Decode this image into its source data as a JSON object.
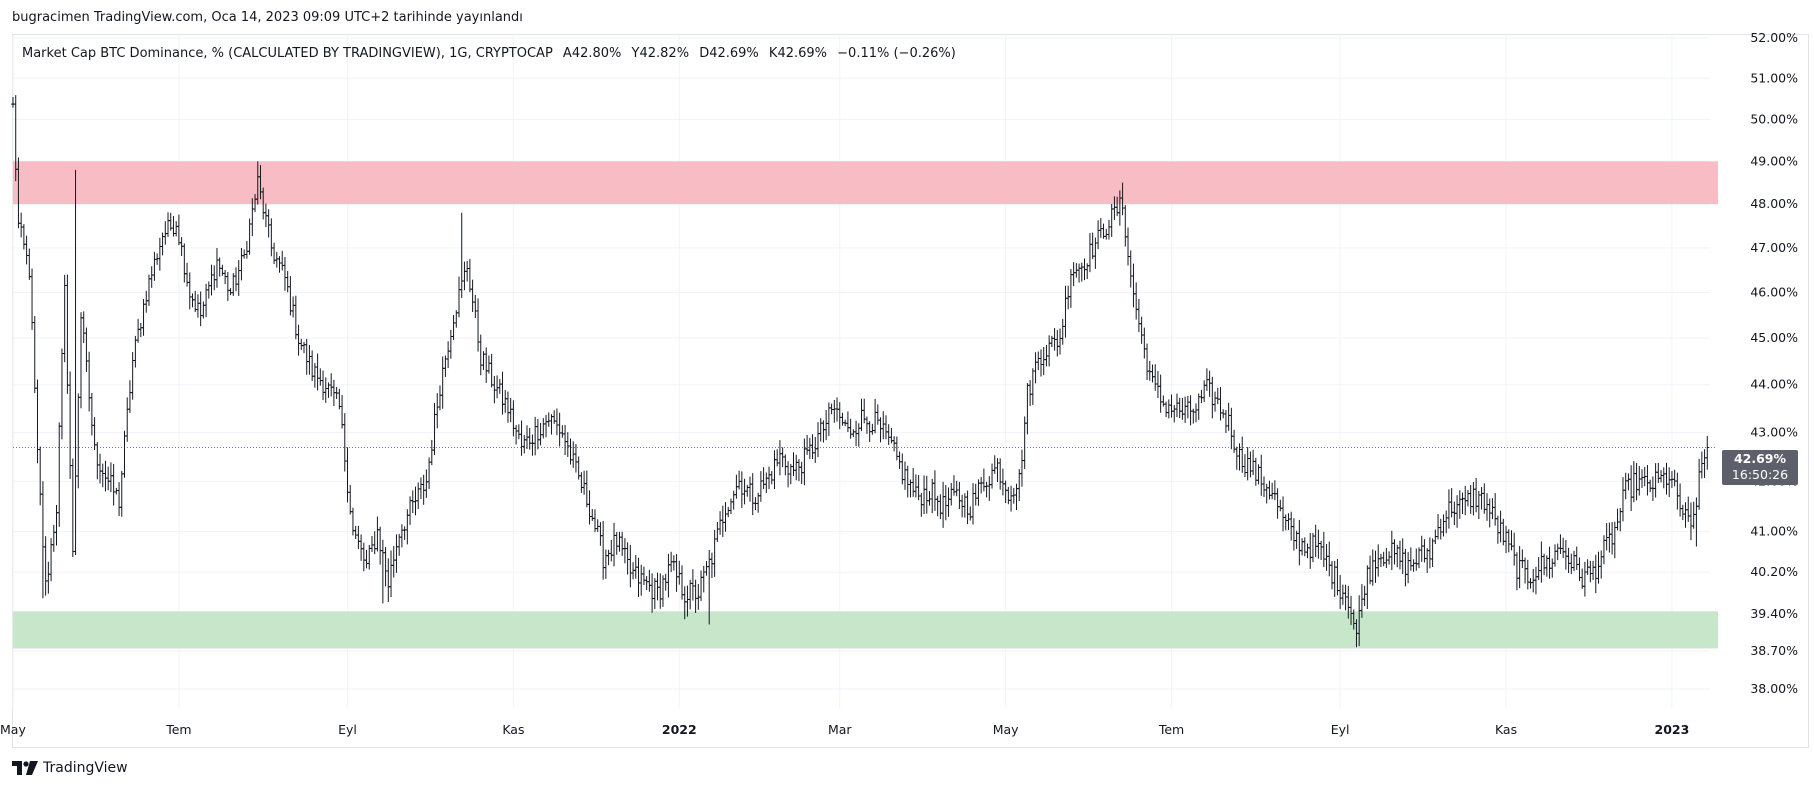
{
  "publisher_line": "bugracimen TradingView.com, Oca 14, 2023 09:09 UTC+2 tarihinde yayınlandı",
  "legend": {
    "title": "Market Cap BTC Dominance, % (CALCULATED BY TRADINGVIEW), 1G, CRYPTOCAP",
    "open": "A42.80%",
    "high": "Y42.82%",
    "low": "D42.69%",
    "close": "K42.69%",
    "change": "−0.11% (−0.26%)"
  },
  "price_badge": {
    "value": "42.69%",
    "countdown": "16:50:26"
  },
  "footer": {
    "brand": "TradingView"
  },
  "colors": {
    "bars": "#131722",
    "resistance_zone": "#f8bcc4",
    "support_zone": "#c8e6c9",
    "grid": "#f0f3fa",
    "price_line": "#787b86",
    "badge": "#5d606b"
  },
  "chart_data": {
    "type": "ohlc",
    "title": "Market Cap BTC Dominance, % (CALCULATED BY TRADINGVIEW), 1G, CRYPTOCAP",
    "y_axis": {
      "scale": "log",
      "range": [
        37.8,
        52.1
      ],
      "ticks": [
        "52.00%",
        "51.00%",
        "50.00%",
        "49.00%",
        "48.00%",
        "47.00%",
        "46.00%",
        "45.00%",
        "44.00%",
        "43.00%",
        "42.00%",
        "41.00%",
        "40.20%",
        "39.40%",
        "38.70%",
        "38.00%"
      ]
    },
    "x_axis": {
      "range": [
        "2021-05-01",
        "2023-01-15"
      ],
      "ticks": [
        {
          "date": "2021-05-01",
          "label": "May",
          "bold": false
        },
        {
          "date": "2021-07-01",
          "label": "Tem",
          "bold": false
        },
        {
          "date": "2021-09-01",
          "label": "Eyl",
          "bold": false
        },
        {
          "date": "2021-11-01",
          "label": "Kas",
          "bold": false
        },
        {
          "date": "2022-01-01",
          "label": "2022",
          "bold": true
        },
        {
          "date": "2022-03-01",
          "label": "Mar",
          "bold": false
        },
        {
          "date": "2022-05-01",
          "label": "May",
          "bold": false
        },
        {
          "date": "2022-07-01",
          "label": "Tem",
          "bold": false
        },
        {
          "date": "2022-09-01",
          "label": "Eyl",
          "bold": false
        },
        {
          "date": "2022-11-01",
          "label": "Kas",
          "bold": false
        },
        {
          "date": "2023-01-01",
          "label": "2023",
          "bold": true
        }
      ]
    },
    "zones": [
      {
        "role": "resistance",
        "low": 48.0,
        "high": 49.0
      },
      {
        "role": "support",
        "low": 38.75,
        "high": 39.45
      }
    ],
    "last_price": 42.69,
    "series_path": [
      [
        "2021-05-01",
        50.3
      ],
      [
        "2021-05-03",
        47.5
      ],
      [
        "2021-05-07",
        46.5
      ],
      [
        "2021-05-10",
        42.5
      ],
      [
        "2021-05-13",
        39.9
      ],
      [
        "2021-05-17",
        41.5
      ],
      [
        "2021-05-20",
        46.0
      ],
      [
        "2021-05-23",
        40.5
      ],
      [
        "2021-05-26",
        45.5
      ],
      [
        "2021-05-31",
        42.6
      ],
      [
        "2021-06-05",
        42.0
      ],
      [
        "2021-06-09",
        41.6
      ],
      [
        "2021-06-14",
        44.5
      ],
      [
        "2021-06-19",
        46.0
      ],
      [
        "2021-06-25",
        47.3
      ],
      [
        "2021-06-30",
        47.6
      ],
      [
        "2021-07-05",
        46.0
      ],
      [
        "2021-07-09",
        45.5
      ],
      [
        "2021-07-15",
        46.7
      ],
      [
        "2021-07-20",
        46.0
      ],
      [
        "2021-07-25",
        46.8
      ],
      [
        "2021-07-30",
        48.5
      ],
      [
        "2021-08-04",
        47.0
      ],
      [
        "2021-08-09",
        46.3
      ],
      [
        "2021-08-14",
        45.0
      ],
      [
        "2021-08-19",
        44.3
      ],
      [
        "2021-08-24",
        44.0
      ],
      [
        "2021-08-29",
        43.5
      ],
      [
        "2021-09-03",
        41.0
      ],
      [
        "2021-09-08",
        40.3
      ],
      [
        "2021-09-12",
        41.0
      ],
      [
        "2021-09-16",
        40.0
      ],
      [
        "2021-09-20",
        41.0
      ],
      [
        "2021-09-25",
        41.5
      ],
      [
        "2021-09-30",
        42.0
      ],
      [
        "2021-10-05",
        44.0
      ],
      [
        "2021-10-10",
        45.5
      ],
      [
        "2021-10-15",
        46.6
      ],
      [
        "2021-10-20",
        44.6
      ],
      [
        "2021-10-25",
        44.0
      ],
      [
        "2021-10-30",
        43.5
      ],
      [
        "2021-11-04",
        42.7
      ],
      [
        "2021-11-09",
        43.0
      ],
      [
        "2021-11-14",
        43.3
      ],
      [
        "2021-11-19",
        43.0
      ],
      [
        "2021-11-24",
        42.2
      ],
      [
        "2021-11-29",
        41.5
      ],
      [
        "2021-12-04",
        40.5
      ],
      [
        "2021-12-09",
        40.8
      ],
      [
        "2021-12-14",
        40.2
      ],
      [
        "2021-12-19",
        40.0
      ],
      [
        "2021-12-24",
        39.8
      ],
      [
        "2021-12-29",
        40.3
      ],
      [
        "2022-01-03",
        39.8
      ],
      [
        "2022-01-08",
        39.8
      ],
      [
        "2022-01-13",
        40.5
      ],
      [
        "2022-01-18",
        41.5
      ],
      [
        "2022-01-23",
        42.0
      ],
      [
        "2022-01-28",
        41.7
      ],
      [
        "2022-02-02",
        42.0
      ],
      [
        "2022-02-07",
        42.5
      ],
      [
        "2022-02-12",
        42.2
      ],
      [
        "2022-02-17",
        42.5
      ],
      [
        "2022-02-22",
        43.0
      ],
      [
        "2022-02-27",
        43.5
      ],
      [
        "2022-03-04",
        43.0
      ],
      [
        "2022-03-09",
        43.3
      ],
      [
        "2022-03-14",
        43.2
      ],
      [
        "2022-03-19",
        42.8
      ],
      [
        "2022-03-24",
        42.2
      ],
      [
        "2022-03-29",
        41.7
      ],
      [
        "2022-04-03",
        41.8
      ],
      [
        "2022-04-08",
        41.5
      ],
      [
        "2022-04-13",
        41.7
      ],
      [
        "2022-04-18",
        41.5
      ],
      [
        "2022-04-23",
        42.0
      ],
      [
        "2022-04-28",
        42.3
      ],
      [
        "2022-05-02",
        41.8
      ],
      [
        "2022-05-06",
        42.0
      ],
      [
        "2022-05-09",
        43.8
      ],
      [
        "2022-05-13",
        44.6
      ],
      [
        "2022-05-17",
        44.8
      ],
      [
        "2022-05-21",
        45.0
      ],
      [
        "2022-05-25",
        46.5
      ],
      [
        "2022-05-29",
        46.6
      ],
      [
        "2022-06-02",
        47.0
      ],
      [
        "2022-06-06",
        47.4
      ],
      [
        "2022-06-10",
        47.8
      ],
      [
        "2022-06-13",
        48.0
      ],
      [
        "2022-06-16",
        46.3
      ],
      [
        "2022-06-20",
        45.0
      ],
      [
        "2022-06-24",
        44.0
      ],
      [
        "2022-06-28",
        43.6
      ],
      [
        "2022-07-02",
        43.5
      ],
      [
        "2022-07-06",
        43.4
      ],
      [
        "2022-07-10",
        43.5
      ],
      [
        "2022-07-14",
        43.9
      ],
      [
        "2022-07-18",
        43.6
      ],
      [
        "2022-07-22",
        43.2
      ],
      [
        "2022-07-26",
        42.5
      ],
      [
        "2022-07-30",
        42.3
      ],
      [
        "2022-08-03",
        42.0
      ],
      [
        "2022-08-07",
        41.8
      ],
      [
        "2022-08-11",
        41.2
      ],
      [
        "2022-08-15",
        40.9
      ],
      [
        "2022-08-19",
        40.7
      ],
      [
        "2022-08-23",
        40.7
      ],
      [
        "2022-08-27",
        40.4
      ],
      [
        "2022-08-31",
        40.0
      ],
      [
        "2022-09-04",
        39.7
      ],
      [
        "2022-09-07",
        39.0
      ],
      [
        "2022-09-10",
        40.0
      ],
      [
        "2022-09-14",
        40.5
      ],
      [
        "2022-09-18",
        40.6
      ],
      [
        "2022-09-22",
        40.5
      ],
      [
        "2022-09-26",
        40.3
      ],
      [
        "2022-09-30",
        40.5
      ],
      [
        "2022-10-04",
        40.6
      ],
      [
        "2022-10-08",
        41.2
      ],
      [
        "2022-10-12",
        41.5
      ],
      [
        "2022-10-16",
        41.5
      ],
      [
        "2022-10-20",
        41.7
      ],
      [
        "2022-10-24",
        41.6
      ],
      [
        "2022-10-28",
        41.2
      ],
      [
        "2022-11-01",
        40.8
      ],
      [
        "2022-11-05",
        40.3
      ],
      [
        "2022-11-09",
        40.1
      ],
      [
        "2022-11-13",
        40.3
      ],
      [
        "2022-11-17",
        40.4
      ],
      [
        "2022-11-21",
        40.7
      ],
      [
        "2022-11-25",
        40.4
      ],
      [
        "2022-11-29",
        40.1
      ],
      [
        "2022-12-03",
        40.2
      ],
      [
        "2022-12-07",
        40.6
      ],
      [
        "2022-12-11",
        41.0
      ],
      [
        "2022-12-15",
        41.8
      ],
      [
        "2022-12-19",
        42.0
      ],
      [
        "2022-12-23",
        41.9
      ],
      [
        "2022-12-27",
        42.0
      ],
      [
        "2022-12-31",
        42.1
      ],
      [
        "2023-01-04",
        41.5
      ],
      [
        "2023-01-08",
        41.0
      ],
      [
        "2023-01-12",
        42.3
      ],
      [
        "2023-01-14",
        42.69
      ]
    ],
    "spikes": [
      {
        "date": "2021-05-12",
        "low": 39.7
      },
      {
        "date": "2021-05-24",
        "high": 48.8
      },
      {
        "date": "2021-07-30",
        "high": 49.0
      },
      {
        "date": "2021-09-14",
        "low": 39.6
      },
      {
        "date": "2021-10-13",
        "high": 47.8
      },
      {
        "date": "2022-01-03",
        "low": 39.3
      },
      {
        "date": "2022-01-12",
        "low": 39.2
      },
      {
        "date": "2022-06-13",
        "high": 48.5
      },
      {
        "date": "2022-09-07",
        "low": 38.9
      },
      {
        "date": "2023-01-10",
        "low": 40.7
      }
    ]
  }
}
